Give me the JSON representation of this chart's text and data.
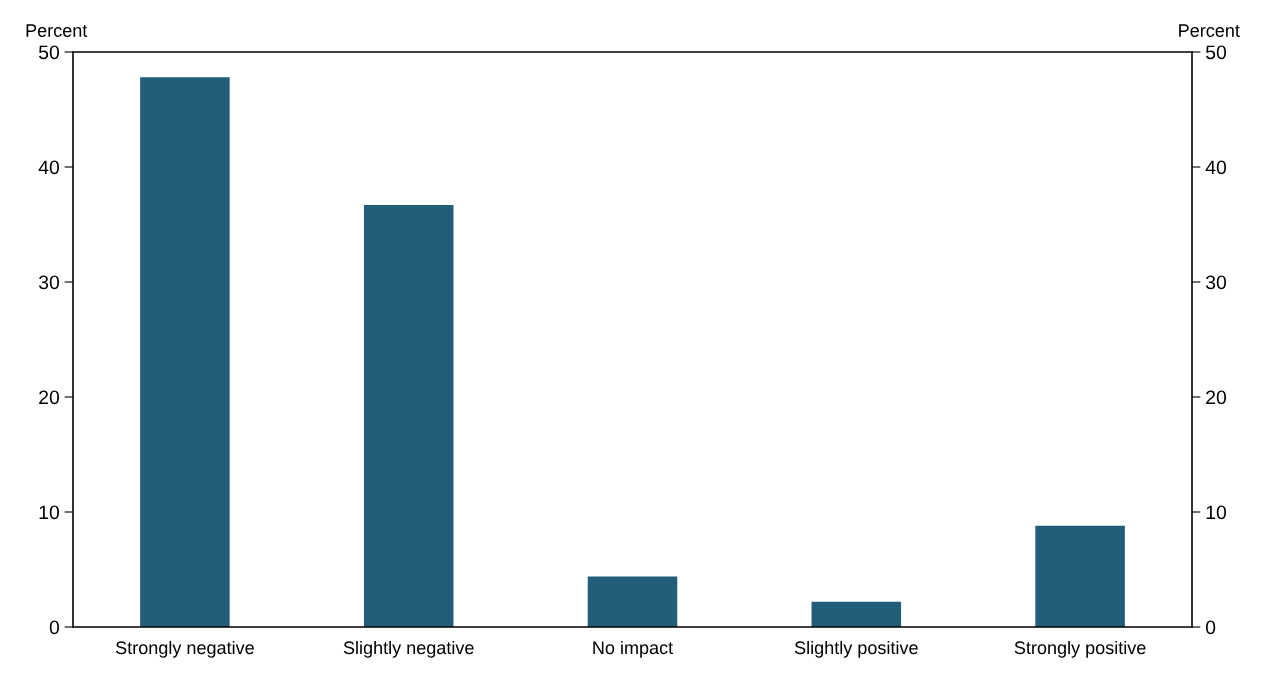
{
  "chart_data": {
    "type": "bar",
    "ylabel": "Percent",
    "y2label": "Percent",
    "categories": [
      "Strongly negative",
      "Slightly negative",
      "No impact",
      "Slightly positive",
      "Strongly positive"
    ],
    "values": [
      47.8,
      36.7,
      4.4,
      2.2,
      8.8
    ],
    "color": "#225e7a",
    "ylim": [
      0,
      50
    ],
    "yticks": [
      0,
      10,
      20,
      30,
      40,
      50
    ],
    "y2lim": [
      0,
      50
    ],
    "y2ticks": [
      0,
      10,
      20,
      30,
      40,
      50
    ],
    "grid": false,
    "legend": false
  }
}
